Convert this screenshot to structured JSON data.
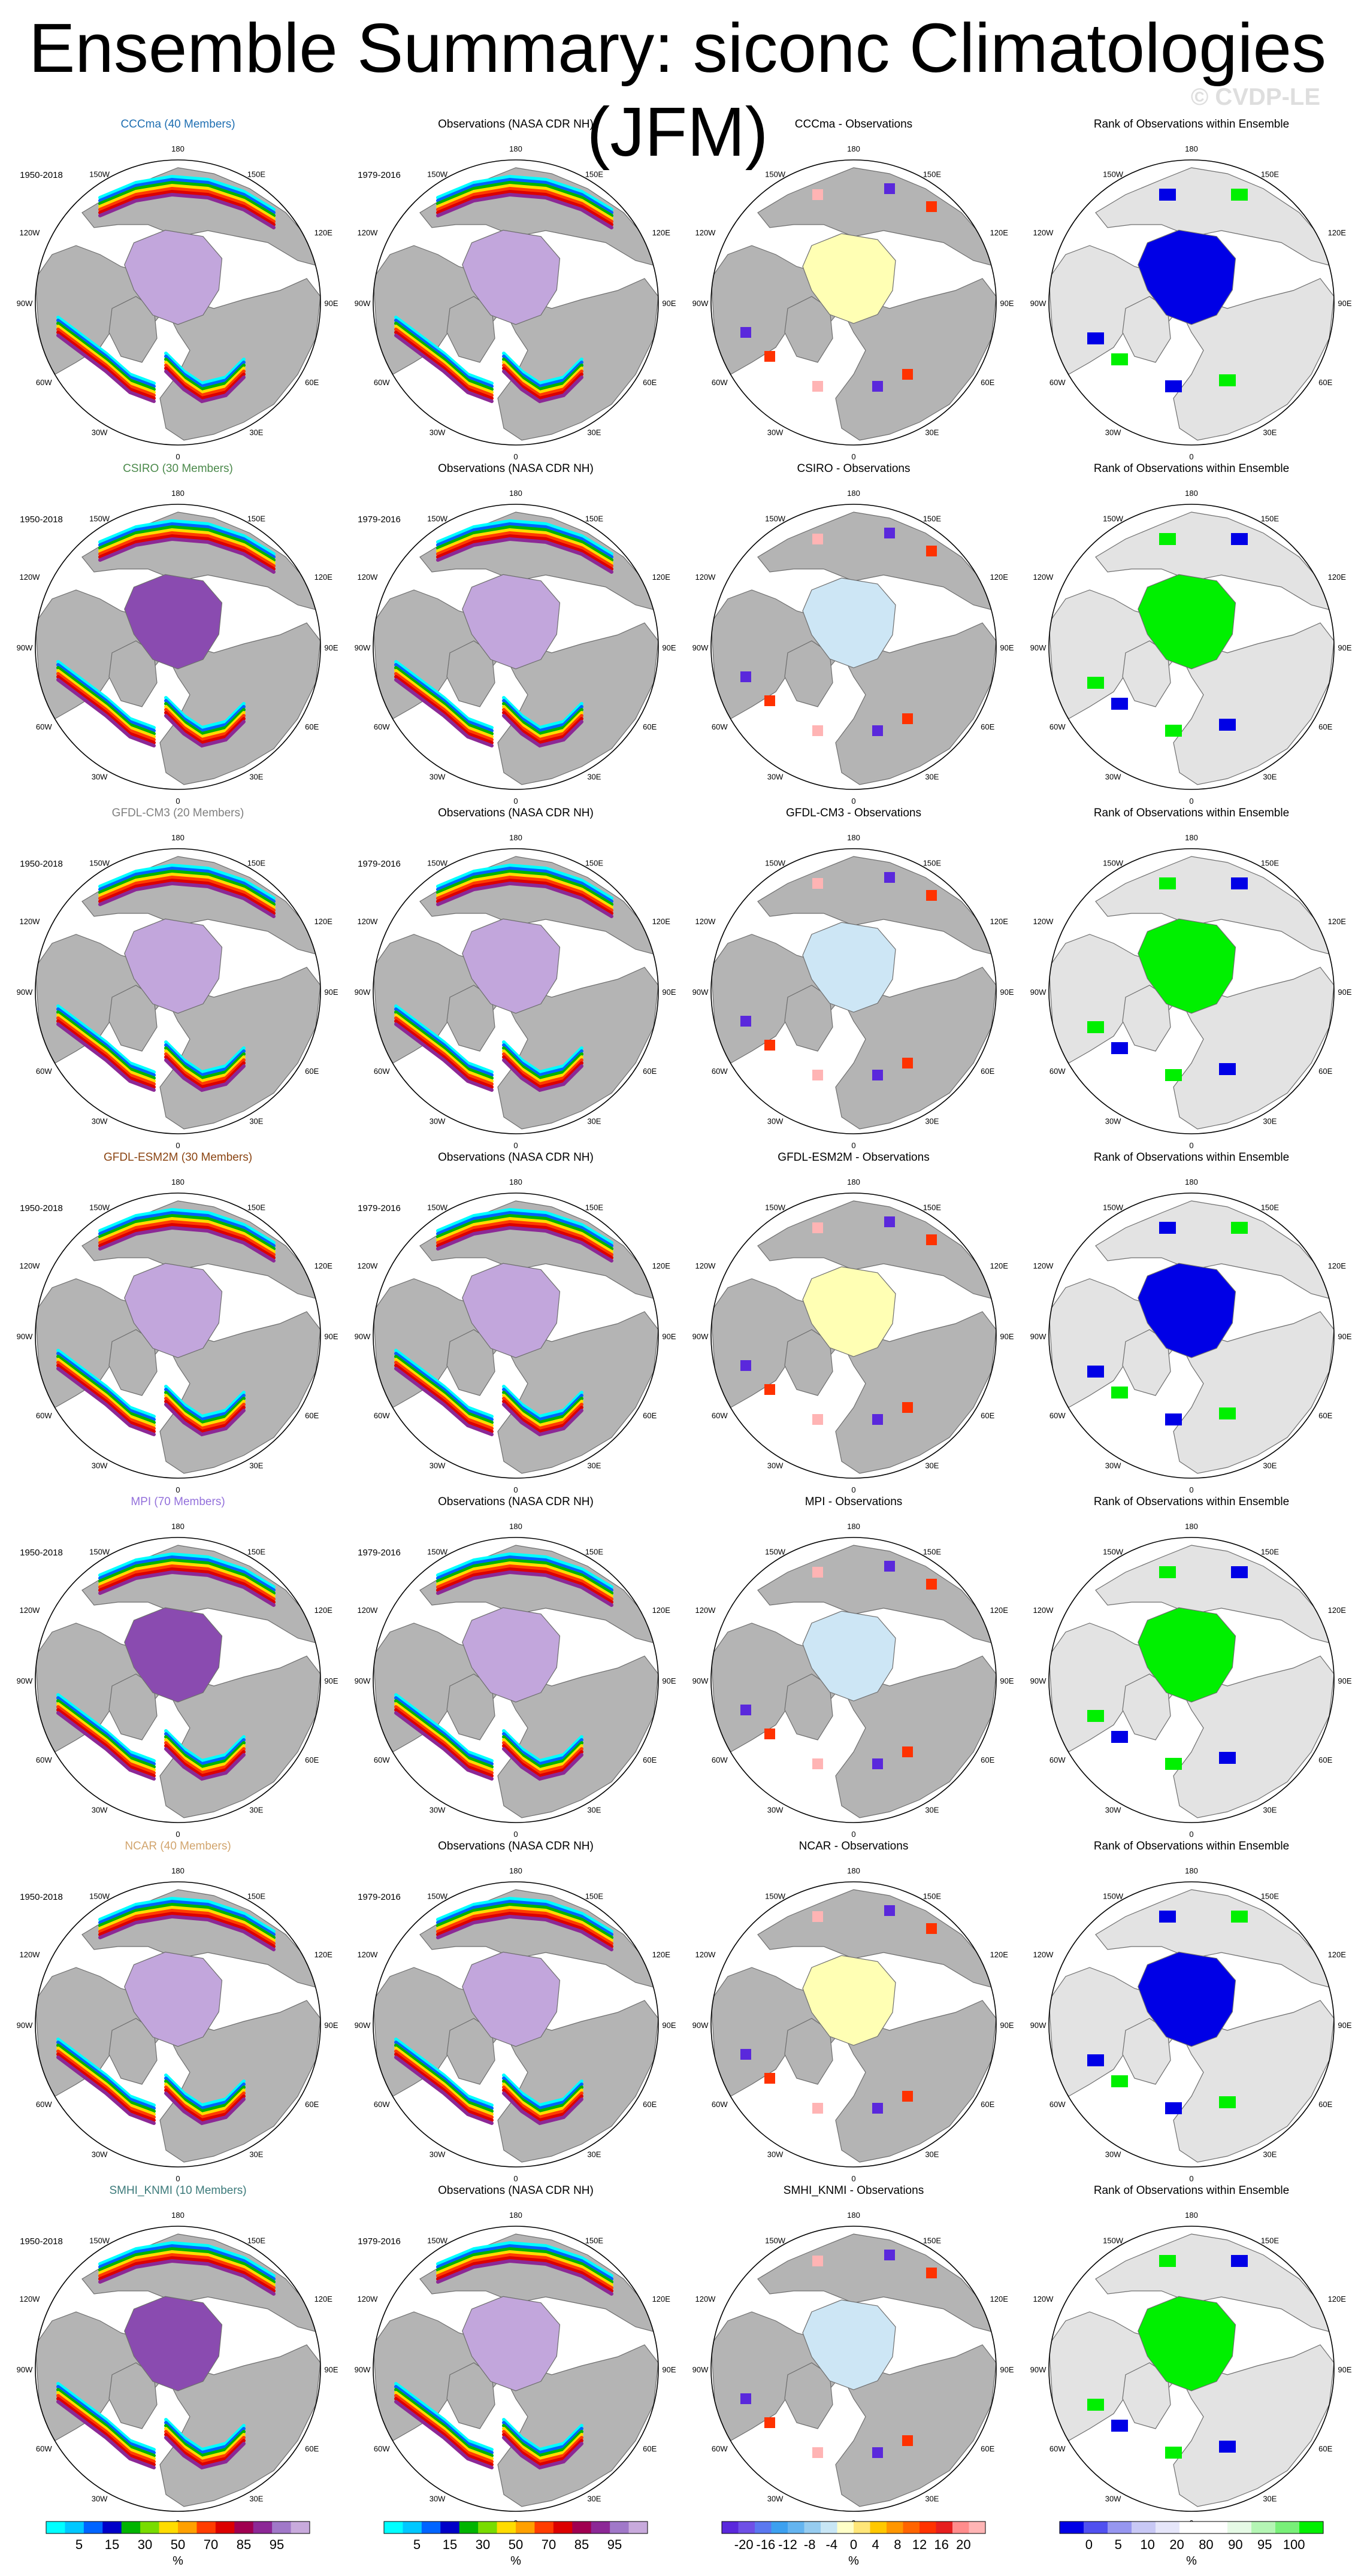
{
  "title": "Ensemble Summary: siconc Climatologies (JFM)",
  "watermark": "© CVDP-LE",
  "colors": {
    "land": "#b4b4b4",
    "rank_bg": "#e3e3e3",
    "ocean": "#ffffff",
    "ice_full_light": "#c2a6dc",
    "ice_full_dark": "#8a4bb0",
    "rank_high": "#00f000",
    "rank_low": "#0000e6",
    "diff_neg": "#cde6f5",
    "diff_pos": "#ffffb4"
  },
  "lon_labels": {
    "top": "180",
    "top_right": "150E",
    "top_left": "150W",
    "upper_right": "120E",
    "upper_left": "120W",
    "right": "90E",
    "left": "90W",
    "lower_right": "60E",
    "lower_left": "60W",
    "bottom_right": "30E",
    "bottom_left": "30W",
    "bottom": "0"
  },
  "rows": [
    {
      "model": "CCCma (40 Members)",
      "color": "#1f6fb2",
      "years_model": "1950-2018",
      "years_obs": "1979-2016",
      "obs_title": "Observations (NASA CDR NH)",
      "diff_title": "CCCma - Observations",
      "rank_title": "Rank of Observations within Ensemble",
      "ice_shade": "light",
      "rank": "low",
      "diff": "pos"
    },
    {
      "model": "CSIRO (30 Members)",
      "color": "#4c8a4c",
      "years_model": "1950-2018",
      "years_obs": "1979-2016",
      "obs_title": "Observations (NASA CDR NH)",
      "diff_title": "CSIRO - Observations",
      "rank_title": "Rank of Observations within Ensemble",
      "ice_shade": "dark",
      "rank": "high",
      "diff": "neg"
    },
    {
      "model": "GFDL-CM3 (20 Members)",
      "color": "#7f7f7f",
      "years_model": "1950-2018",
      "years_obs": "1979-2016",
      "obs_title": "Observations (NASA CDR NH)",
      "diff_title": "GFDL-CM3 - Observations",
      "rank_title": "Rank of Observations within Ensemble",
      "ice_shade": "light",
      "rank": "high",
      "diff": "neg"
    },
    {
      "model": "GFDL-ESM2M (30 Members)",
      "color": "#8b4513",
      "years_model": "1950-2018",
      "years_obs": "1979-2016",
      "obs_title": "Observations (NASA CDR NH)",
      "diff_title": "GFDL-ESM2M - Observations",
      "rank_title": "Rank of Observations within Ensemble",
      "ice_shade": "light",
      "rank": "low",
      "diff": "pos"
    },
    {
      "model": "MPI (70 Members)",
      "color": "#9370db",
      "years_model": "1950-2018",
      "years_obs": "1979-2016",
      "obs_title": "Observations (NASA CDR NH)",
      "diff_title": "MPI - Observations",
      "rank_title": "Rank of Observations within Ensemble",
      "ice_shade": "dark",
      "rank": "high",
      "diff": "neg"
    },
    {
      "model": "NCAR (40 Members)",
      "color": "#d2a56e",
      "years_model": "1950-2018",
      "years_obs": "1979-2016",
      "obs_title": "Observations (NASA CDR NH)",
      "diff_title": "NCAR - Observations",
      "rank_title": "Rank of Observations within Ensemble",
      "ice_shade": "light",
      "rank": "low",
      "diff": "pos"
    },
    {
      "model": "SMHI_KNMI (10 Members)",
      "color": "#3c7a7a",
      "years_model": "1950-2018",
      "years_obs": "1979-2016",
      "obs_title": "Observations (NASA CDR NH)",
      "diff_title": "SMHI_KNMI - Observations",
      "rank_title": "Rank of Observations within Ensemble",
      "ice_shade": "dark",
      "rank": "high",
      "diff": "neg"
    }
  ],
  "colorbars": [
    {
      "unit": "%",
      "labels": [
        "5",
        "15",
        "30",
        "50",
        "70",
        "85",
        "95"
      ],
      "colors": [
        "#00ffff",
        "#00c8ff",
        "#0064ff",
        "#0000c8",
        "#00b400",
        "#78dc00",
        "#ffdc00",
        "#ffa000",
        "#ff3c00",
        "#dc0000",
        "#a00050",
        "#8c2896",
        "#a078c8",
        "#c8aadc"
      ]
    },
    {
      "unit": "%",
      "labels": [
        "5",
        "15",
        "30",
        "50",
        "70",
        "85",
        "95"
      ],
      "colors": [
        "#00ffff",
        "#00c8ff",
        "#0064ff",
        "#0000c8",
        "#00b400",
        "#78dc00",
        "#ffdc00",
        "#ffa000",
        "#ff3c00",
        "#dc0000",
        "#a00050",
        "#8c2896",
        "#a078c8",
        "#c8aadc"
      ]
    },
    {
      "unit": "%",
      "labels": [
        "-20",
        "-16",
        "-12",
        "-8",
        "-4",
        "0",
        "4",
        "8",
        "12",
        "16",
        "20"
      ],
      "colors": [
        "#5a28dc",
        "#6e50e6",
        "#5a78f0",
        "#3ca0f0",
        "#64b4f0",
        "#96ccf0",
        "#c8e6f5",
        "#ffffc8",
        "#ffe678",
        "#ffc800",
        "#ff9600",
        "#ff6400",
        "#ff3200",
        "#e61e1e",
        "#ff8c8c",
        "#ffb4b4"
      ]
    },
    {
      "unit": "%",
      "labels": [
        "0",
        "5",
        "10",
        "20",
        "80",
        "90",
        "95",
        "100"
      ],
      "colors": [
        "#0000e6",
        "#5050f0",
        "#9696f0",
        "#c8c8f5",
        "#e6e6fa",
        "#ffffff",
        "#ffffff",
        "#e6fae6",
        "#b4f5b4",
        "#78f078",
        "#00f000"
      ]
    }
  ]
}
